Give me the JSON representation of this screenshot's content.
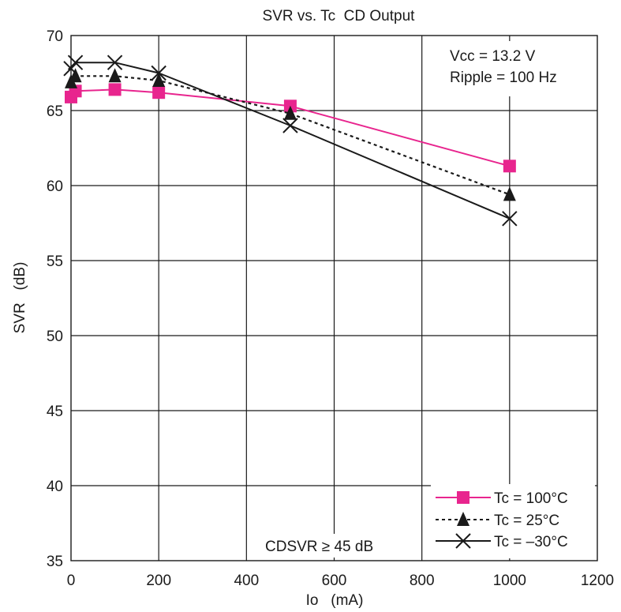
{
  "chart_data": {
    "type": "line",
    "title": "SVR vs. Tc  CD Output",
    "xlabel": "Io   (mA)",
    "ylabel": "SVR   (dB)",
    "xlim": [
      0,
      1200
    ],
    "ylim": [
      35,
      70
    ],
    "xticks": [
      0,
      200,
      400,
      600,
      800,
      1000,
      1200
    ],
    "yticks": [
      35,
      40,
      45,
      50,
      55,
      60,
      65,
      70
    ],
    "grid": true,
    "annotations": [
      "Vcc = 13.2 V",
      "Ripple = 100 Hz",
      "CDSVR ≥ 45 dB"
    ],
    "legend_position": "bottom-right",
    "series": [
      {
        "name": "Tc = 100°C",
        "color": "#e8258e",
        "marker": "square",
        "line": "solid",
        "x": [
          0,
          10,
          100,
          200,
          500,
          1000
        ],
        "y": [
          65.9,
          66.3,
          66.4,
          66.2,
          65.3,
          61.3
        ]
      },
      {
        "name": "Tc = 25°C",
        "color": "#1a1a1a",
        "marker": "triangle",
        "line": "dotted",
        "x": [
          0,
          10,
          100,
          200,
          500,
          1000
        ],
        "y": [
          66.9,
          67.3,
          67.3,
          67.0,
          64.8,
          59.4
        ]
      },
      {
        "name": "Tc = –30°C",
        "color": "#1a1a1a",
        "marker": "x",
        "line": "solid",
        "x": [
          0,
          10,
          100,
          200,
          500,
          1000
        ],
        "y": [
          67.8,
          68.2,
          68.2,
          67.5,
          64.0,
          57.8
        ]
      }
    ]
  }
}
